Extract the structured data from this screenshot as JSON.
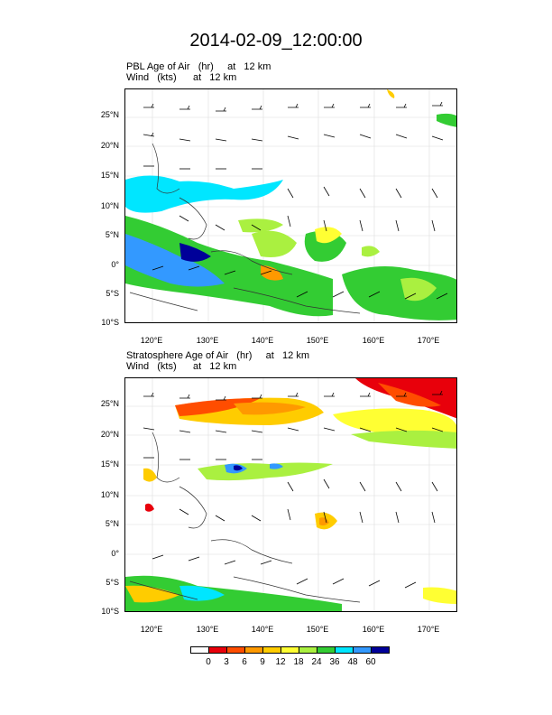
{
  "figure_title": "2014-02-09_12:00:00",
  "panels": [
    {
      "id": "pbl",
      "line1": "PBL Age of Air   (hr)     at   12 km",
      "line2": "Wind   (kts)      at   12 km"
    },
    {
      "id": "strat",
      "line1": "Stratosphere Age of Air   (hr)     at   12 km",
      "line2": "Wind   (kts)      at   12 km"
    }
  ],
  "lat_ticks": [
    "25°N",
    "20°N",
    "15°N",
    "10°N",
    "5°N",
    "0°",
    "5°S",
    "10°S"
  ],
  "lon_ticks": [
    "120°E",
    "130°E",
    "140°E",
    "150°E",
    "160°E",
    "170°E"
  ],
  "colorbar": {
    "labels": [
      "0",
      "3",
      "6",
      "9",
      "12",
      "18",
      "24",
      "36",
      "48",
      "60"
    ],
    "colors": [
      "#ffffff",
      "#e8000b",
      "#ff4d00",
      "#ff9900",
      "#ffcc00",
      "#ffff33",
      "#aaf040",
      "#33cc33",
      "#00e6ff",
      "#3399ff",
      "#000099"
    ]
  }
}
